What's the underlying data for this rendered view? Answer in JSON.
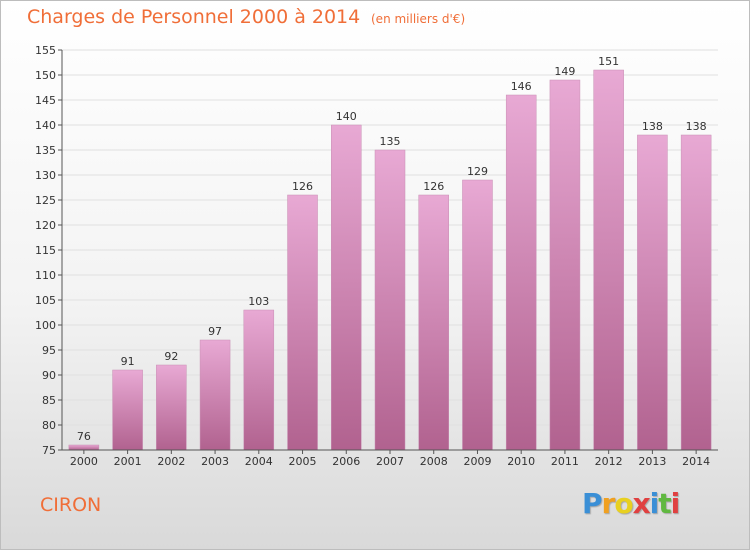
{
  "header": {
    "title": "Charges de Personnel 2000 à 2014",
    "subtitle": "(en milliers d'€)"
  },
  "footer": {
    "city": "CIRON",
    "brand_letters": [
      {
        "char": "P",
        "color": "#3a8fd6"
      },
      {
        "char": "r",
        "color": "#f0a020"
      },
      {
        "char": "o",
        "color": "#e8d020"
      },
      {
        "char": "x",
        "color": "#e04040"
      },
      {
        "char": "i",
        "color": "#3a8fd6"
      },
      {
        "char": "t",
        "color": "#60b840"
      },
      {
        "char": "i",
        "color": "#e04040"
      }
    ]
  },
  "colors": {
    "bar_top": "#e8a9d4",
    "bar_bottom": "#b1628f",
    "grid": "#e0e0e0",
    "accent": "#f06e38"
  },
  "chart_data": {
    "type": "bar",
    "categories": [
      "2000",
      "2001",
      "2002",
      "2003",
      "2004",
      "2005",
      "2006",
      "2007",
      "2008",
      "2009",
      "2010",
      "2011",
      "2012",
      "2013",
      "2014"
    ],
    "values": [
      76,
      91,
      92,
      97,
      103,
      126,
      140,
      135,
      126,
      129,
      146,
      149,
      151,
      138,
      138
    ],
    "ylim": [
      75,
      155
    ],
    "yticks": [
      75,
      80,
      85,
      90,
      95,
      100,
      105,
      110,
      115,
      120,
      125,
      130,
      135,
      140,
      145,
      150,
      155
    ],
    "grid": true
  }
}
